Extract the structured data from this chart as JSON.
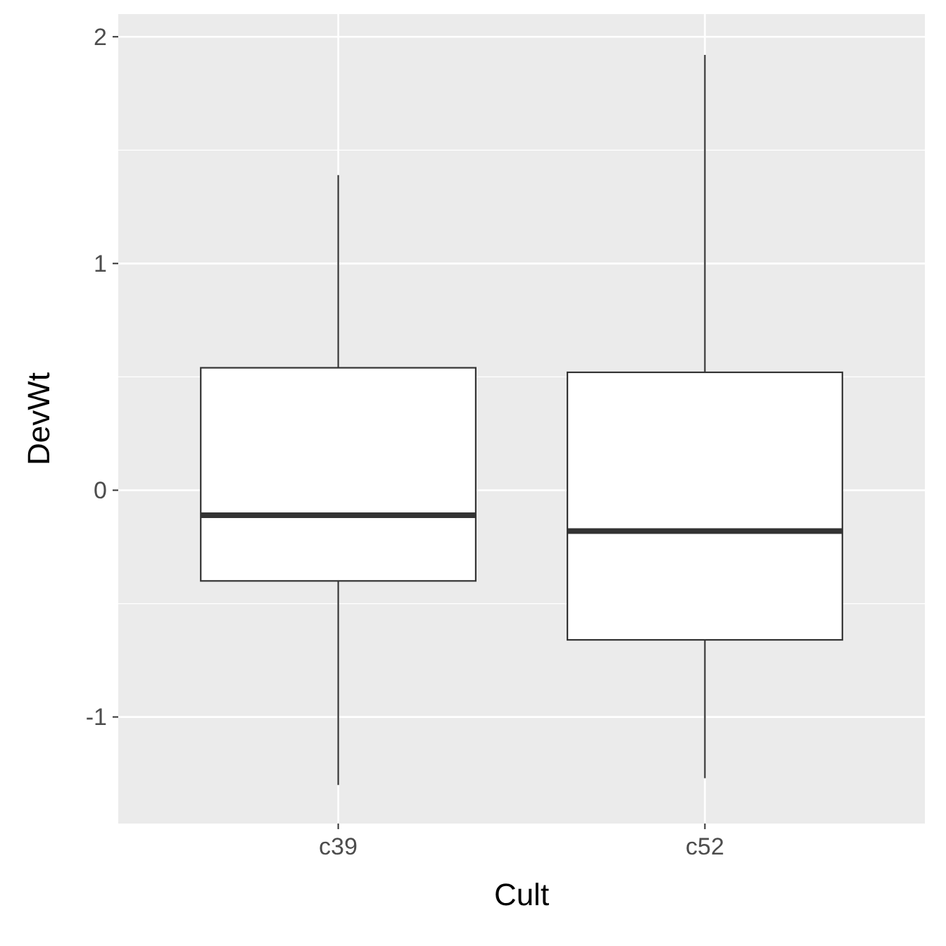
{
  "chart_data": {
    "type": "box",
    "xlabel": "Cult",
    "ylabel": "DevWt",
    "categories": [
      "c39",
      "c52"
    ],
    "boxes": [
      {
        "low": -1.3,
        "q1": -0.4,
        "median": -0.11,
        "q3": 0.54,
        "high": 1.39
      },
      {
        "low": -1.27,
        "q1": -0.66,
        "median": -0.18,
        "q3": 0.52,
        "high": 1.92
      }
    ],
    "ylim": [
      -1.47,
      2.1
    ],
    "yticks": [
      -1,
      0,
      1,
      2
    ],
    "grid": true
  }
}
